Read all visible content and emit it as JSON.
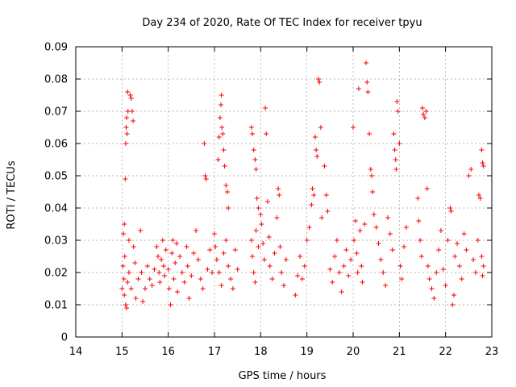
{
  "chart_data": {
    "type": "scatter",
    "title": "Day 234 of 2020, Rate Of TEC Index for receiver tpyu",
    "xlabel": "GPS time / hours",
    "ylabel": "ROTI / TECUs",
    "xlim": [
      14,
      23
    ],
    "ylim": [
      0,
      0.09
    ],
    "xticks": [
      "14",
      "15",
      "16",
      "17",
      "18",
      "19",
      "20",
      "21",
      "22",
      "23"
    ],
    "yticks": [
      "0",
      "0.01",
      "0.02",
      "0.03",
      "0.04",
      "0.05",
      "0.06",
      "0.07",
      "0.08",
      "0.09"
    ],
    "grid": true,
    "marker": "+",
    "color": "#ff0000",
    "series": [
      {
        "name": "ROTI",
        "points": [
          [
            15.0,
            0.015
          ],
          [
            15.02,
            0.022
          ],
          [
            15.03,
            0.032
          ],
          [
            15.04,
            0.018
          ],
          [
            15.05,
            0.035
          ],
          [
            15.06,
            0.025
          ],
          [
            15.07,
            0.049
          ],
          [
            15.08,
            0.06
          ],
          [
            15.09,
            0.065
          ],
          [
            15.1,
            0.068
          ],
          [
            15.11,
            0.063
          ],
          [
            15.12,
            0.076
          ],
          [
            15.13,
            0.07
          ],
          [
            15.05,
            0.013
          ],
          [
            15.08,
            0.01
          ],
          [
            15.1,
            0.009
          ],
          [
            15.12,
            0.017
          ],
          [
            15.15,
            0.03
          ],
          [
            15.18,
            0.075
          ],
          [
            15.2,
            0.074
          ],
          [
            15.22,
            0.07
          ],
          [
            15.24,
            0.067
          ],
          [
            15.25,
            0.028
          ],
          [
            15.15,
            0.02
          ],
          [
            15.2,
            0.015
          ],
          [
            15.28,
            0.023
          ],
          [
            15.3,
            0.012
          ],
          [
            15.35,
            0.018
          ],
          [
            15.4,
            0.033
          ],
          [
            15.42,
            0.02
          ],
          [
            15.45,
            0.011
          ],
          [
            15.5,
            0.015
          ],
          [
            15.55,
            0.022
          ],
          [
            15.6,
            0.018
          ],
          [
            15.65,
            0.016
          ],
          [
            15.7,
            0.021
          ],
          [
            15.75,
            0.028
          ],
          [
            15.78,
            0.025
          ],
          [
            15.8,
            0.02
          ],
          [
            15.82,
            0.017
          ],
          [
            15.85,
            0.024
          ],
          [
            15.88,
            0.03
          ],
          [
            15.9,
            0.022
          ],
          [
            15.92,
            0.019
          ],
          [
            15.95,
            0.027
          ],
          [
            16.0,
            0.021
          ],
          [
            16.02,
            0.015
          ],
          [
            16.05,
            0.01
          ],
          [
            16.08,
            0.026
          ],
          [
            16.1,
            0.03
          ],
          [
            16.12,
            0.018
          ],
          [
            16.15,
            0.023
          ],
          [
            16.18,
            0.029
          ],
          [
            16.2,
            0.014
          ],
          [
            16.25,
            0.025
          ],
          [
            16.3,
            0.02
          ],
          [
            16.35,
            0.017
          ],
          [
            16.4,
            0.028
          ],
          [
            16.42,
            0.022
          ],
          [
            16.45,
            0.012
          ],
          [
            16.5,
            0.019
          ],
          [
            16.55,
            0.026
          ],
          [
            16.6,
            0.033
          ],
          [
            16.65,
            0.024
          ],
          [
            16.7,
            0.018
          ],
          [
            16.75,
            0.015
          ],
          [
            16.78,
            0.06
          ],
          [
            16.8,
            0.05
          ],
          [
            16.82,
            0.049
          ],
          [
            16.85,
            0.021
          ],
          [
            16.9,
            0.027
          ],
          [
            16.95,
            0.02
          ],
          [
            17.0,
            0.032
          ],
          [
            17.02,
            0.028
          ],
          [
            17.05,
            0.024
          ],
          [
            17.08,
            0.055
          ],
          [
            17.1,
            0.062
          ],
          [
            17.12,
            0.068
          ],
          [
            17.14,
            0.072
          ],
          [
            17.15,
            0.075
          ],
          [
            17.16,
            0.065
          ],
          [
            17.18,
            0.063
          ],
          [
            17.2,
            0.058
          ],
          [
            17.22,
            0.053
          ],
          [
            17.25,
            0.047
          ],
          [
            17.28,
            0.045
          ],
          [
            17.3,
            0.04
          ],
          [
            17.1,
            0.02
          ],
          [
            17.15,
            0.016
          ],
          [
            17.2,
            0.026
          ],
          [
            17.25,
            0.03
          ],
          [
            17.3,
            0.022
          ],
          [
            17.35,
            0.018
          ],
          [
            17.4,
            0.015
          ],
          [
            17.45,
            0.027
          ],
          [
            17.5,
            0.021
          ],
          [
            17.8,
            0.065
          ],
          [
            17.82,
            0.063
          ],
          [
            17.85,
            0.058
          ],
          [
            17.88,
            0.055
          ],
          [
            17.9,
            0.052
          ],
          [
            17.92,
            0.043
          ],
          [
            17.95,
            0.04
          ],
          [
            17.8,
            0.03
          ],
          [
            17.82,
            0.025
          ],
          [
            17.85,
            0.02
          ],
          [
            17.88,
            0.017
          ],
          [
            17.9,
            0.033
          ],
          [
            17.95,
            0.028
          ],
          [
            18.0,
            0.038
          ],
          [
            18.02,
            0.035
          ],
          [
            18.05,
            0.029
          ],
          [
            18.08,
            0.024
          ],
          [
            18.1,
            0.071
          ],
          [
            18.12,
            0.063
          ],
          [
            18.15,
            0.042
          ],
          [
            18.18,
            0.031
          ],
          [
            18.2,
            0.022
          ],
          [
            18.25,
            0.018
          ],
          [
            18.3,
            0.026
          ],
          [
            18.35,
            0.037
          ],
          [
            18.38,
            0.046
          ],
          [
            18.4,
            0.044
          ],
          [
            18.42,
            0.028
          ],
          [
            18.45,
            0.02
          ],
          [
            18.5,
            0.016
          ],
          [
            18.55,
            0.024
          ],
          [
            18.75,
            0.013
          ],
          [
            18.8,
            0.019
          ],
          [
            18.85,
            0.025
          ],
          [
            18.9,
            0.018
          ],
          [
            18.95,
            0.022
          ],
          [
            19.0,
            0.03
          ],
          [
            19.05,
            0.034
          ],
          [
            19.1,
            0.041
          ],
          [
            19.12,
            0.046
          ],
          [
            19.15,
            0.044
          ],
          [
            19.18,
            0.062
          ],
          [
            19.2,
            0.058
          ],
          [
            19.22,
            0.056
          ],
          [
            19.25,
            0.08
          ],
          [
            19.27,
            0.079
          ],
          [
            19.3,
            0.065
          ],
          [
            19.32,
            0.037
          ],
          [
            19.38,
            0.053
          ],
          [
            19.42,
            0.044
          ],
          [
            19.45,
            0.039
          ],
          [
            19.5,
            0.021
          ],
          [
            19.55,
            0.017
          ],
          [
            19.6,
            0.025
          ],
          [
            19.65,
            0.03
          ],
          [
            19.7,
            0.02
          ],
          [
            19.75,
            0.014
          ],
          [
            19.8,
            0.022
          ],
          [
            19.85,
            0.027
          ],
          [
            19.9,
            0.019
          ],
          [
            19.95,
            0.024
          ],
          [
            20.0,
            0.065
          ],
          [
            20.02,
            0.03
          ],
          [
            20.05,
            0.036
          ],
          [
            20.08,
            0.026
          ],
          [
            20.1,
            0.02
          ],
          [
            20.12,
            0.077
          ],
          [
            20.15,
            0.033
          ],
          [
            20.18,
            0.022
          ],
          [
            20.2,
            0.017
          ],
          [
            20.25,
            0.035
          ],
          [
            20.28,
            0.085
          ],
          [
            20.3,
            0.079
          ],
          [
            20.32,
            0.076
          ],
          [
            20.35,
            0.063
          ],
          [
            20.38,
            0.052
          ],
          [
            20.4,
            0.05
          ],
          [
            20.42,
            0.045
          ],
          [
            20.45,
            0.038
          ],
          [
            20.5,
            0.034
          ],
          [
            20.55,
            0.029
          ],
          [
            20.6,
            0.024
          ],
          [
            20.65,
            0.02
          ],
          [
            20.7,
            0.016
          ],
          [
            20.75,
            0.037
          ],
          [
            20.8,
            0.032
          ],
          [
            20.85,
            0.027
          ],
          [
            20.88,
            0.063
          ],
          [
            20.9,
            0.058
          ],
          [
            20.92,
            0.055
          ],
          [
            20.93,
            0.052
          ],
          [
            20.95,
            0.073
          ],
          [
            20.97,
            0.07
          ],
          [
            21.0,
            0.06
          ],
          [
            21.02,
            0.022
          ],
          [
            21.05,
            0.018
          ],
          [
            21.1,
            0.028
          ],
          [
            21.15,
            0.034
          ],
          [
            21.4,
            0.043
          ],
          [
            21.42,
            0.036
          ],
          [
            21.45,
            0.03
          ],
          [
            21.48,
            0.025
          ],
          [
            21.5,
            0.071
          ],
          [
            21.52,
            0.069
          ],
          [
            21.55,
            0.068
          ],
          [
            21.58,
            0.07
          ],
          [
            21.6,
            0.046
          ],
          [
            21.62,
            0.022
          ],
          [
            21.65,
            0.018
          ],
          [
            21.7,
            0.015
          ],
          [
            21.75,
            0.012
          ],
          [
            21.8,
            0.02
          ],
          [
            21.85,
            0.027
          ],
          [
            21.9,
            0.033
          ],
          [
            21.95,
            0.021
          ],
          [
            22.0,
            0.016
          ],
          [
            22.05,
            0.03
          ],
          [
            22.1,
            0.04
          ],
          [
            22.12,
            0.039
          ],
          [
            22.15,
            0.01
          ],
          [
            22.18,
            0.013
          ],
          [
            22.2,
            0.025
          ],
          [
            22.25,
            0.029
          ],
          [
            22.3,
            0.022
          ],
          [
            22.35,
            0.018
          ],
          [
            22.4,
            0.032
          ],
          [
            22.45,
            0.027
          ],
          [
            22.5,
            0.05
          ],
          [
            22.55,
            0.052
          ],
          [
            22.6,
            0.024
          ],
          [
            22.65,
            0.02
          ],
          [
            22.7,
            0.03
          ],
          [
            22.72,
            0.044
          ],
          [
            22.75,
            0.043
          ],
          [
            22.78,
            0.058
          ],
          [
            22.8,
            0.054
          ],
          [
            22.82,
            0.053
          ],
          [
            22.78,
            0.025
          ],
          [
            22.8,
            0.019
          ],
          [
            22.82,
            0.022
          ]
        ]
      }
    ]
  }
}
